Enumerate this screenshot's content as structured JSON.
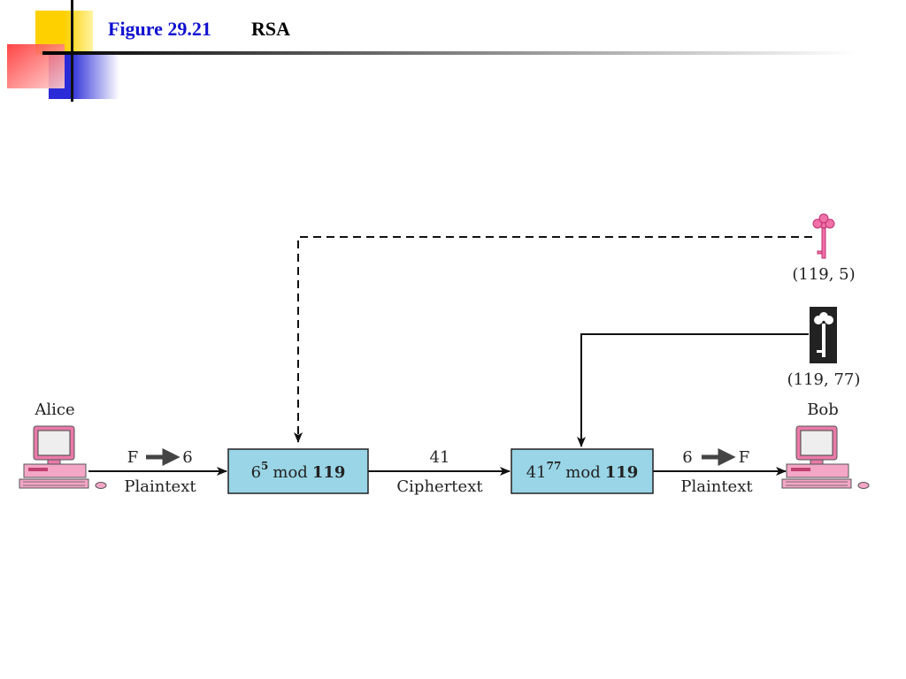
{
  "header": {
    "figure": "Figure 29.21",
    "title": "RSA"
  },
  "nodes": {
    "alice": "Alice",
    "bob": "Bob"
  },
  "keys": {
    "public": "(119, 5)",
    "private": "(119, 77)"
  },
  "encrypt_input": {
    "from": "F",
    "to": "6",
    "label": "Plaintext"
  },
  "encryption": {
    "base": "6",
    "exponent": "5",
    "op": "mod",
    "modulus": "119"
  },
  "transmit": {
    "value": "41",
    "label": "Ciphertext"
  },
  "decryption": {
    "base": "41",
    "exponent": "77",
    "op": "mod",
    "modulus": "119"
  },
  "decrypt_output": {
    "from": "6",
    "to": "F",
    "label": "Plaintext"
  }
}
